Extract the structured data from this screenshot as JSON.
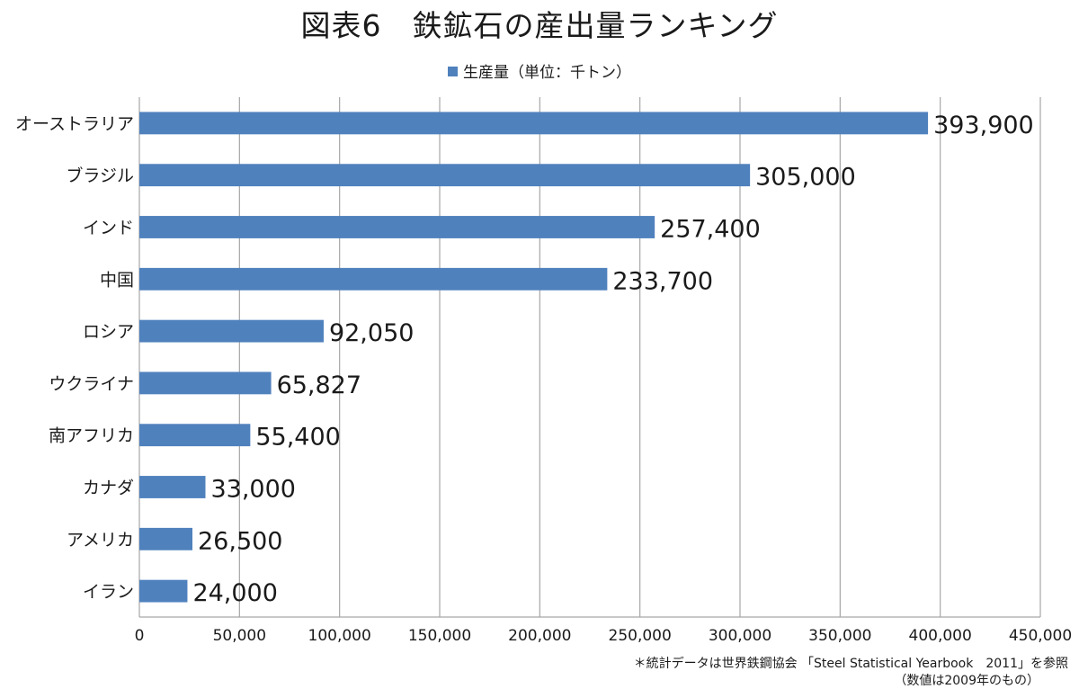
{
  "colors": {
    "bar": "#4f81bd",
    "grid": "#a6a6a6",
    "axis": "#a6a6a6",
    "text": "#1a1a1a"
  },
  "chart_data": {
    "type": "bar",
    "orientation": "horizontal",
    "title": "図表6　鉄鉱石の産出量ランキング",
    "legend_position": "top",
    "grid": true,
    "categories": [
      "オーストラリア",
      "ブラジル",
      "インド",
      "中国",
      "ロシア",
      "ウクライナ",
      "南アフリカ",
      "カナダ",
      "アメリカ",
      "イラン"
    ],
    "series": [
      {
        "name": "生産量（単位：千トン）",
        "values": [
          393900,
          305000,
          257400,
          233700,
          92050,
          65827,
          55400,
          33000,
          26500,
          24000
        ],
        "value_labels": [
          "393,900",
          "305,000",
          "257,400",
          "233,700",
          "92,050",
          "65,827",
          "55,400",
          "33,000",
          "26,500",
          "24,000"
        ]
      }
    ],
    "xlim": [
      0,
      450000
    ],
    "x_ticks": [
      0,
      50000,
      100000,
      150000,
      200000,
      250000,
      300000,
      350000,
      400000,
      450000
    ],
    "x_tick_labels": [
      "0",
      "50,000",
      "100,000",
      "150,000",
      "200,000",
      "250,000",
      "300,000",
      "350,000",
      "400,000",
      "450,000"
    ],
    "xlabel": "",
    "ylabel": ""
  },
  "footnote": {
    "line1": "＊統計データは世界鉄鋼協会 「Steel Statistical Yearbook　2011」を参照",
    "line2": "（数値は2009年のもの）"
  }
}
